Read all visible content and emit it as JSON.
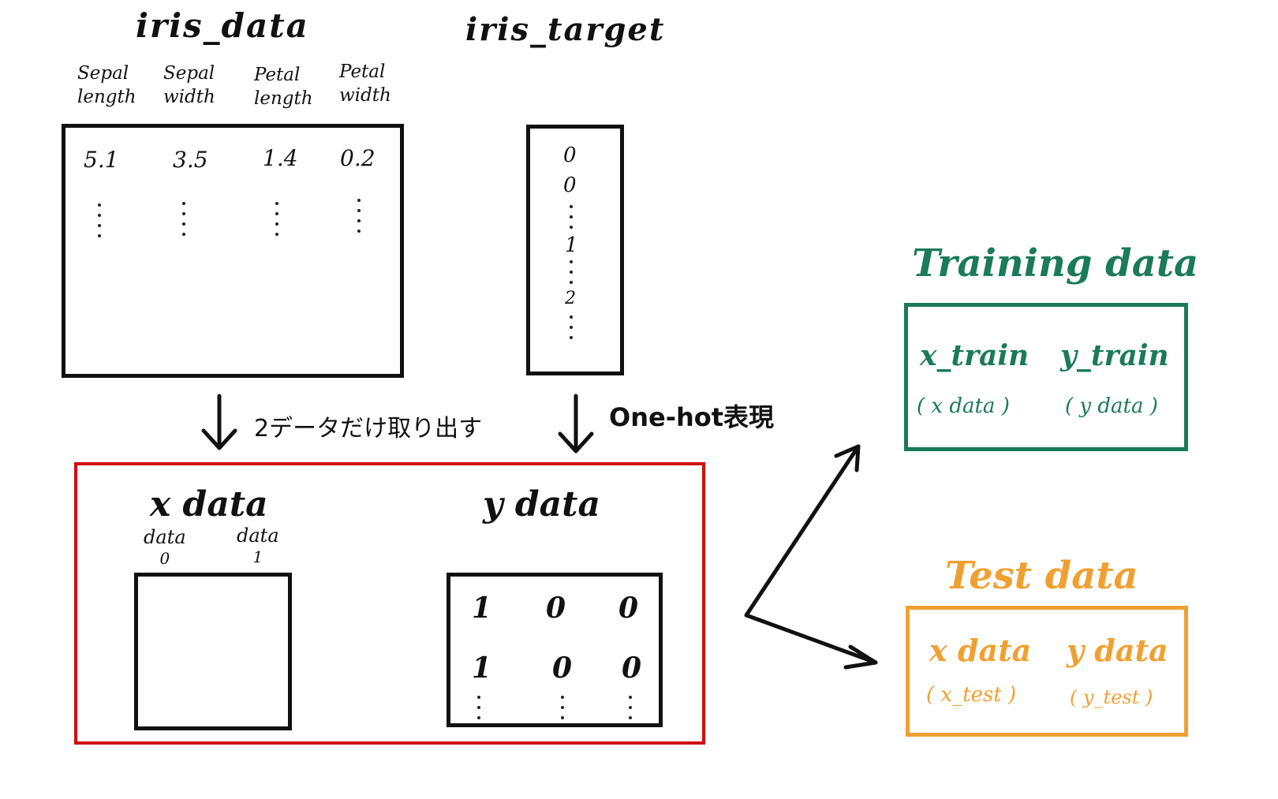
{
  "iris_data": {
    "title": "iris_data",
    "columns": [
      {
        "line1": "Sepal",
        "line2": "length"
      },
      {
        "line1": "Sepal",
        "line2": "width"
      },
      {
        "line1": "Petal",
        "line2": "length"
      },
      {
        "line1": "Petal",
        "line2": "width"
      }
    ],
    "first_row": [
      "5.1",
      "3.5",
      "1.4",
      "0.2"
    ]
  },
  "iris_target": {
    "title": "iris_target",
    "values": [
      "0",
      "0",
      "1",
      "2"
    ]
  },
  "steps": {
    "extract_label": "2データだけ取り出す",
    "onehot_label": "One-hot表現"
  },
  "x_data": {
    "title": "x data",
    "columns": [
      {
        "name": "data",
        "index": "0"
      },
      {
        "name": "data",
        "index": "1"
      }
    ]
  },
  "y_data": {
    "title": "y data",
    "rows": [
      [
        "1",
        "0",
        "0"
      ],
      [
        "1",
        "0",
        "0"
      ]
    ]
  },
  "training": {
    "title": "Training data",
    "x_label": "x_train",
    "x_sub": "( x data )",
    "y_label": "y_train",
    "y_sub": "( y data )",
    "color": "#1a7a5a"
  },
  "test": {
    "title": "Test data",
    "x_label": "x data",
    "x_sub": "( x_test )",
    "y_label": "y data",
    "y_sub": "( y_test )",
    "color": "#f0a030"
  },
  "colors": {
    "red_frame": "#d01010",
    "ink": "#111111"
  }
}
